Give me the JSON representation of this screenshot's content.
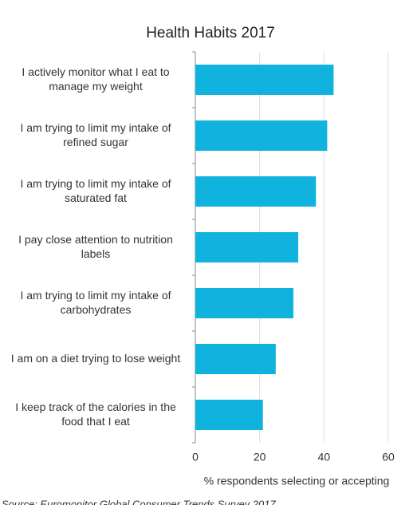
{
  "chart_data": {
    "type": "barh",
    "title": "Health Habits 2017",
    "categories": [
      [
        "I actively monitor what I eat to",
        "manage my weight"
      ],
      [
        "I am trying to limit my intake of",
        "refined sugar"
      ],
      [
        "I am trying to limit my intake of",
        "saturated fat"
      ],
      [
        "I pay close attention to nutrition",
        "labels"
      ],
      [
        "I am trying to limit my intake of",
        "carbohydrates"
      ],
      [
        "I am on a diet trying to lose weight"
      ],
      [
        "I keep track of the calories in the",
        "food that I eat"
      ]
    ],
    "values": [
      43,
      41,
      37.5,
      32,
      30.5,
      25,
      21
    ],
    "color": "#0fb3de",
    "xlim": [
      0,
      60
    ],
    "xticks": [
      0,
      20,
      40,
      60
    ],
    "grid": true,
    "xlabel": "% respondents selecting or accepting",
    "source": "Source: Euromonitor Global Consumer Trends Survey 2017"
  }
}
